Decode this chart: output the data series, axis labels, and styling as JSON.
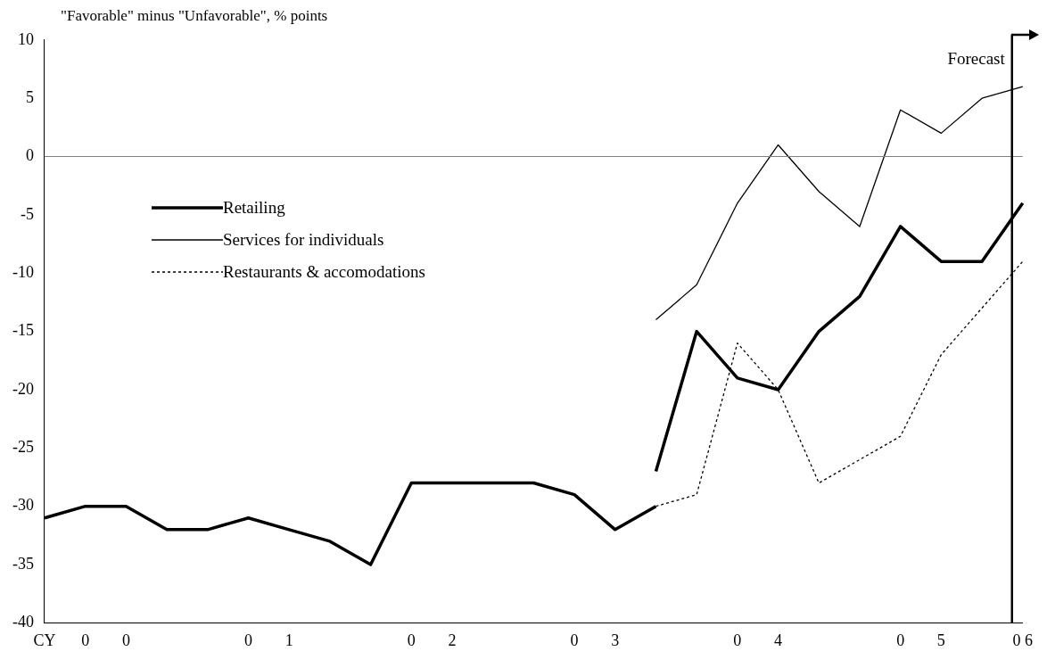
{
  "chart_data": {
    "type": "line",
    "ylabel": "\"Favorable\" minus \"Unfavorable\", % points",
    "categories": [
      "CY",
      "0",
      "0",
      null,
      null,
      "0",
      "1",
      null,
      null,
      "0",
      "2",
      null,
      null,
      "0",
      "3",
      null,
      null,
      "0",
      "4",
      null,
      null,
      "0",
      "5",
      null,
      "0 6"
    ],
    "ylim": [
      -40,
      10
    ],
    "yticks": [
      -40,
      -35,
      -30,
      -25,
      -20,
      -15,
      -10,
      -5,
      0,
      5,
      10
    ],
    "grid": false,
    "marker": "none",
    "legend": "left",
    "series": [
      {
        "name": "Retailing",
        "color": "#000000",
        "line_style": "solid",
        "values": [
          null,
          null,
          null,
          null,
          null,
          null,
          null,
          null,
          null,
          null,
          null,
          null,
          null,
          null,
          null,
          -27,
          -15,
          -19,
          -20,
          -15,
          -12,
          -6,
          -9,
          -9,
          -4
        ]
      },
      {
        "name": "Services for individuals",
        "color": "#000000",
        "line_style": "solid",
        "values": [
          null,
          null,
          null,
          null,
          null,
          null,
          null,
          null,
          null,
          null,
          null,
          null,
          null,
          null,
          null,
          -14,
          -11,
          -4,
          1,
          -3,
          -6,
          4,
          2,
          5,
          6
        ]
      },
      {
        "name": "Restaurants & accomodations",
        "color": "#000000",
        "line_style": "dotted",
        "values": [
          null,
          null,
          null,
          null,
          null,
          null,
          null,
          null,
          null,
          null,
          null,
          null,
          null,
          null,
          null,
          -30,
          -29,
          -16,
          -20,
          -28,
          -26,
          -24,
          -17,
          -13,
          -9
        ]
      },
      {
        "color": "#000000",
        "line_style": "solid",
        "values": [
          -31,
          -30,
          -30,
          -32,
          -32,
          -31,
          -32,
          -33,
          -35,
          -28,
          -28,
          -28,
          -28,
          -29,
          -32,
          -30,
          null,
          null,
          null,
          null,
          null,
          null,
          null,
          null,
          null
        ]
      }
    ],
    "ref_lines": [
      {
        "axis": "y",
        "value": 0,
        "color": "#808080"
      },
      {
        "axis": "x",
        "value": "0 6",
        "label": "Forecast",
        "color": "#000000"
      }
    ]
  }
}
